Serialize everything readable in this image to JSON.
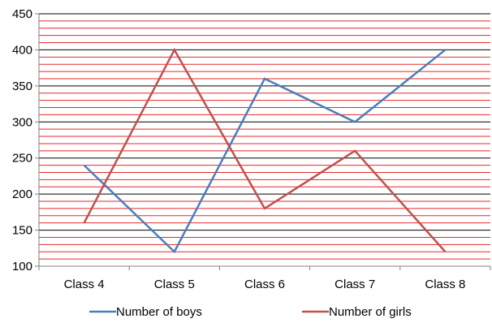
{
  "chart_data": {
    "type": "line",
    "title": "",
    "xlabel": "",
    "ylabel": "",
    "categories": [
      "Class 4",
      "Class 5",
      "Class 6",
      "Class 7",
      "Class 8"
    ],
    "ylim": [
      100,
      450
    ],
    "yticks": [
      100,
      150,
      200,
      250,
      300,
      350,
      400,
      450
    ],
    "minor_gridline_step": 10,
    "grid": true,
    "legend_position": "bottom",
    "series": [
      {
        "name": "Number of boys",
        "values": [
          240,
          120,
          360,
          300,
          400
        ],
        "color": "#4a7ebb"
      },
      {
        "name": "Number of girls",
        "values": [
          160,
          400,
          180,
          260,
          120
        ],
        "color": "#c0504d"
      }
    ],
    "colors": {
      "major_grid": "#000000",
      "minor_grid": "#e8282a",
      "axis": "#808080"
    }
  }
}
